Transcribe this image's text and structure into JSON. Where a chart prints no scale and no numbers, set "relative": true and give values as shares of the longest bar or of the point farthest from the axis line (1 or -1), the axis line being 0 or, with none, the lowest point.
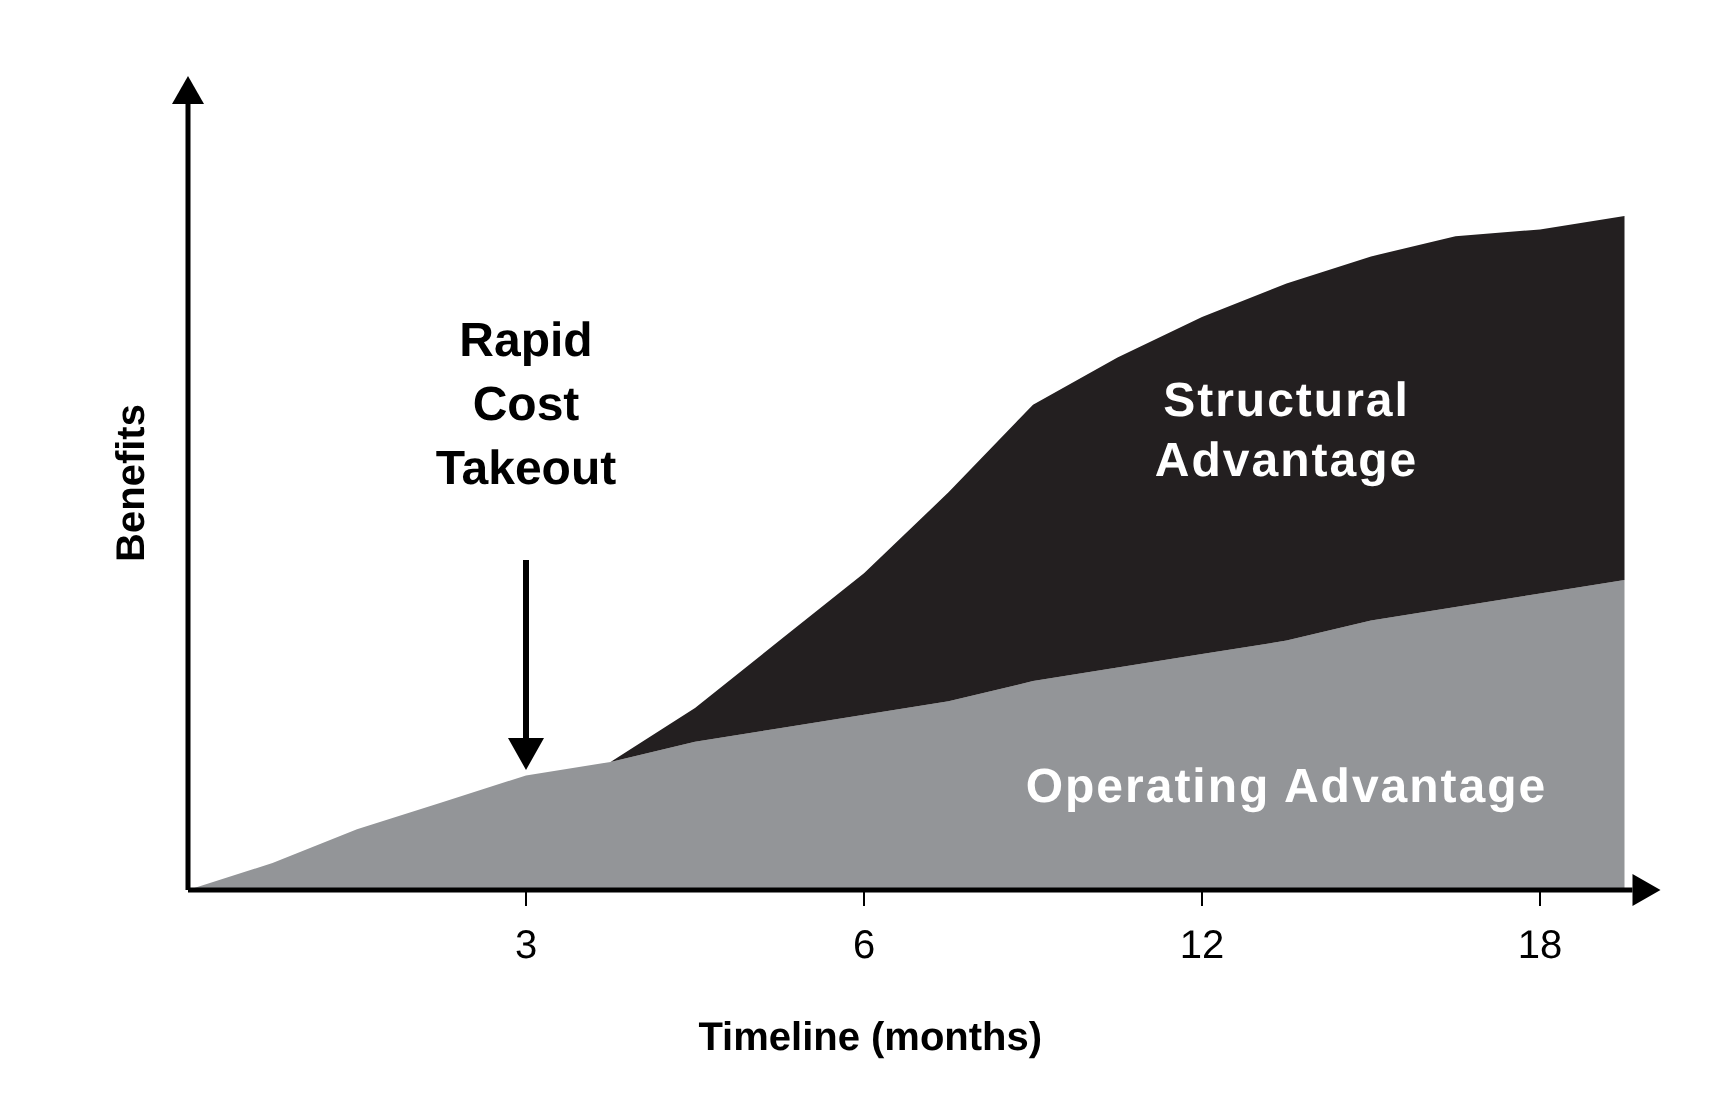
{
  "chart_data": {
    "type": "area",
    "stacked": true,
    "relative": true,
    "xlabel": "Timeline (months)",
    "ylabel": "Benefits",
    "categories": [
      null,
      null,
      null,
      null,
      "3",
      null,
      null,
      null,
      "6",
      null,
      null,
      null,
      "12",
      null,
      null,
      null,
      "18",
      null
    ],
    "series": [
      {
        "name": "Operating Advantage",
        "color": "#939598",
        "values": [
          0,
          0.04,
          0.09,
          0.13,
          0.17,
          0.19,
          0.22,
          0.24,
          0.26,
          0.28,
          0.31,
          0.33,
          0.35,
          0.37,
          0.4,
          0.42,
          0.44,
          0.46
        ]
      },
      {
        "name": "Structural\nAdvantage",
        "color": "#231f20",
        "values": [
          0,
          0,
          0,
          0,
          0,
          0,
          0.05,
          0.13,
          0.21,
          0.31,
          0.41,
          0.46,
          0.5,
          0.53,
          0.54,
          0.55,
          0.54,
          0.54
        ]
      }
    ],
    "annotations": [
      "Rapid\nCost\nTakeout"
    ],
    "grid": false
  }
}
